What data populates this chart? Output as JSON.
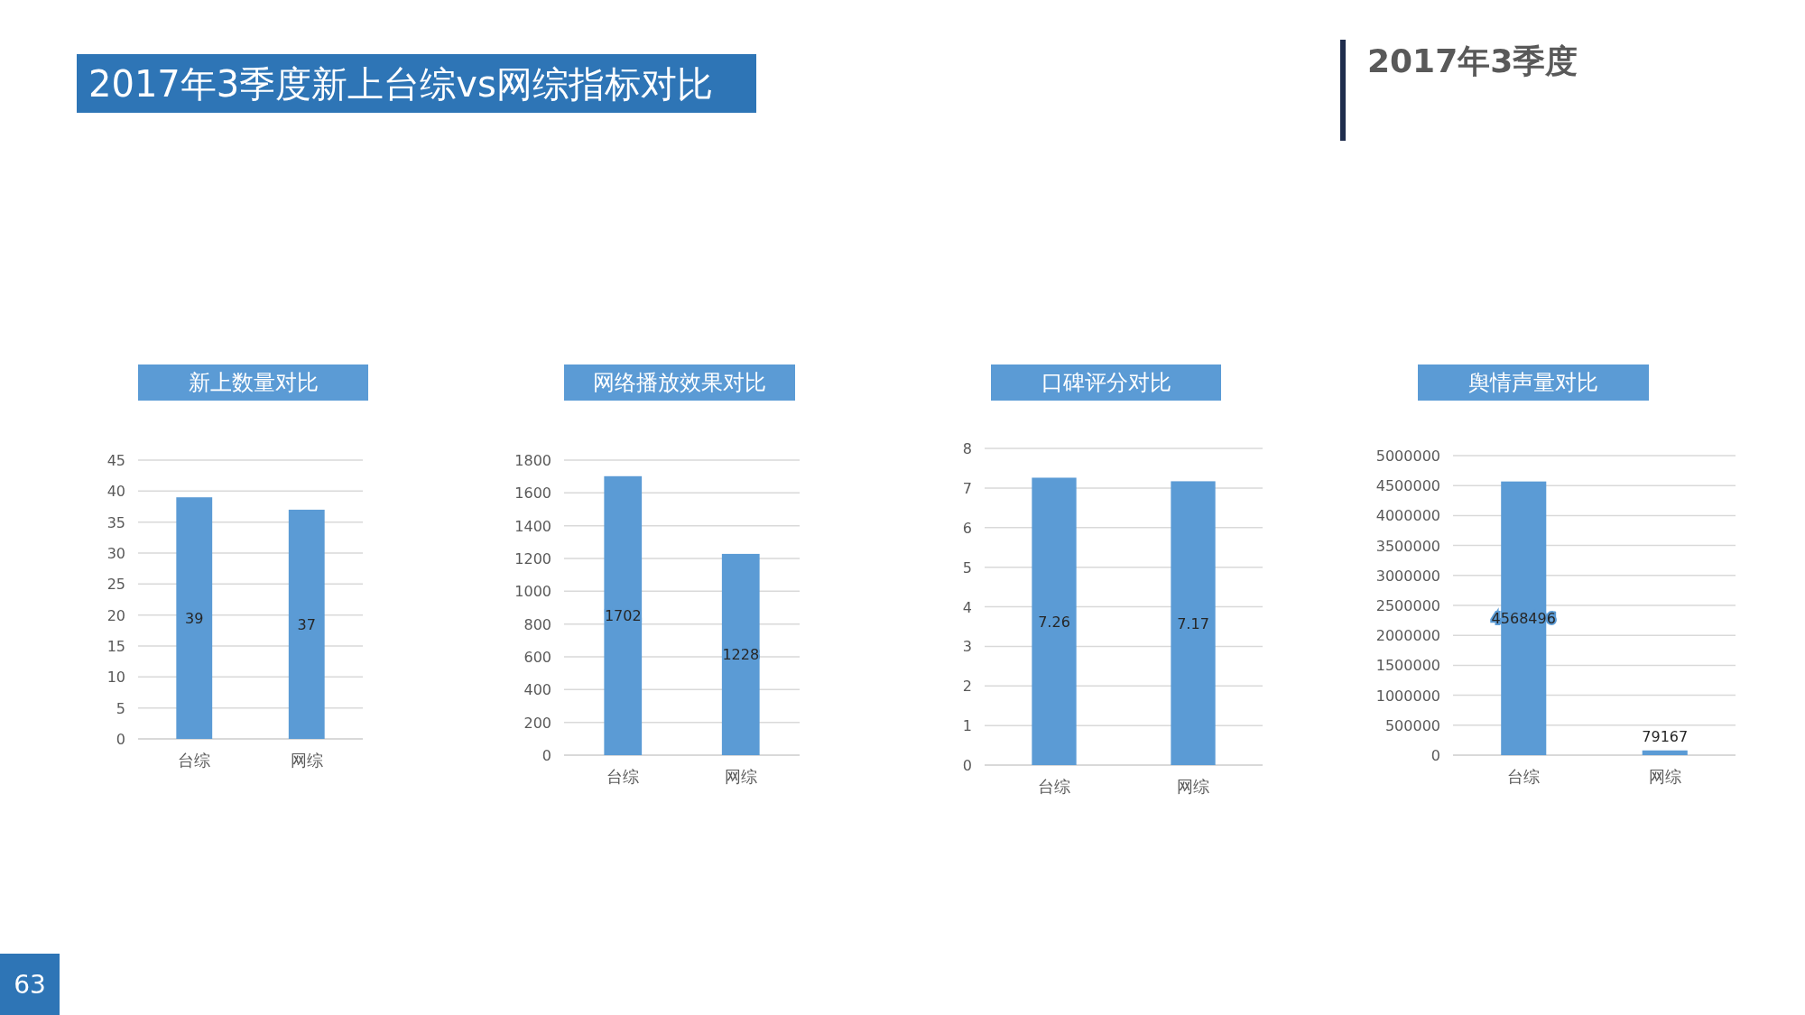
{
  "chart_data": [
    {
      "type": "bar",
      "title": "新上数量对比",
      "categories": [
        "台综",
        "网综"
      ],
      "values": [
        39,
        37
      ],
      "color": "#5b9bd5",
      "ylim": [
        0,
        45
      ],
      "yticks": [
        0,
        5,
        10,
        15,
        20,
        25,
        30,
        35,
        40,
        45
      ],
      "grid": "y",
      "data_labels": true,
      "annotations": [
        "2017年3季度新上台综vs网综指标对比",
        "2017年3季度",
        "63"
      ]
    },
    {
      "type": "bar",
      "title": "网络播放效果对比",
      "categories": [
        "台综",
        "网综"
      ],
      "values": [
        1702,
        1228
      ],
      "color": "#5b9bd5",
      "ylim": [
        0,
        1800
      ],
      "yticks": [
        0,
        200,
        400,
        600,
        800,
        1000,
        1200,
        1400,
        1600,
        1800
      ],
      "grid": "y",
      "data_labels": true
    },
    {
      "type": "bar",
      "title": "口碑评分对比",
      "categories": [
        "台综",
        "网综"
      ],
      "values": [
        7.26,
        7.17
      ],
      "color": "#5b9bd5",
      "ylim": [
        0,
        8
      ],
      "yticks": [
        0,
        1,
        2,
        3,
        4,
        5,
        6,
        7,
        8
      ],
      "grid": "y",
      "data_labels": true
    },
    {
      "type": "bar",
      "title": "舆情声量对比",
      "categories": [
        "台综",
        "网综"
      ],
      "values": [
        4568496,
        79167
      ],
      "color": "#5b9bd5",
      "ylim": [
        0,
        5000000
      ],
      "yticks": [
        0,
        500000,
        1000000,
        1500000,
        2000000,
        2500000,
        3000000,
        3500000,
        4000000,
        4500000,
        5000000
      ],
      "grid": "y",
      "data_labels": true
    }
  ]
}
